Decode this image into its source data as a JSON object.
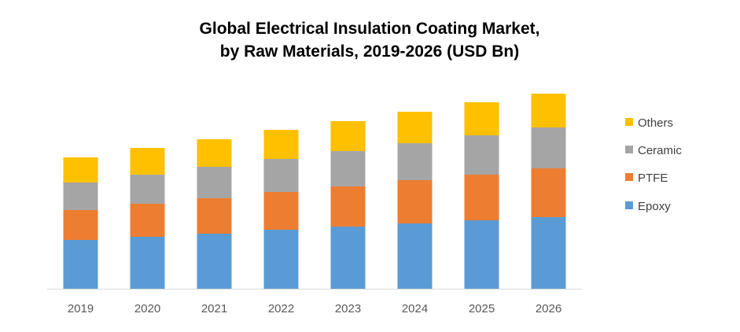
{
  "chart_data": {
    "type": "bar",
    "stacked": true,
    "title": "Global Electrical Insulation Coating Market, by Raw Materials, 2019-2026 (USD Bn)",
    "title_lines": [
      "Global Electrical Insulation Coating Market,",
      "by Raw Materials, 2019-2026 (USD Bn)"
    ],
    "xlabel": "",
    "ylabel": "",
    "y_axis_shown": false,
    "grid": false,
    "legend_position": "right",
    "categories": [
      "2019",
      "2020",
      "2021",
      "2022",
      "2023",
      "2024",
      "2025",
      "2026"
    ],
    "series": [
      {
        "name": "Epoxy",
        "color": "#5B9BD5",
        "values": [
          6.2,
          6.6,
          7.0,
          7.5,
          7.9,
          8.3,
          8.7,
          9.1
        ]
      },
      {
        "name": "PTFE",
        "color": "#ED7D31",
        "values": [
          3.8,
          4.2,
          4.5,
          4.8,
          5.1,
          5.5,
          5.8,
          6.2
        ]
      },
      {
        "name": "Ceramic",
        "color": "#A5A5A5",
        "values": [
          3.5,
          3.7,
          4.0,
          4.2,
          4.5,
          4.7,
          5.0,
          5.2
        ]
      },
      {
        "name": "Others",
        "color": "#FFC000",
        "values": [
          3.2,
          3.4,
          3.5,
          3.7,
          3.8,
          4.0,
          4.2,
          4.3
        ]
      }
    ]
  }
}
